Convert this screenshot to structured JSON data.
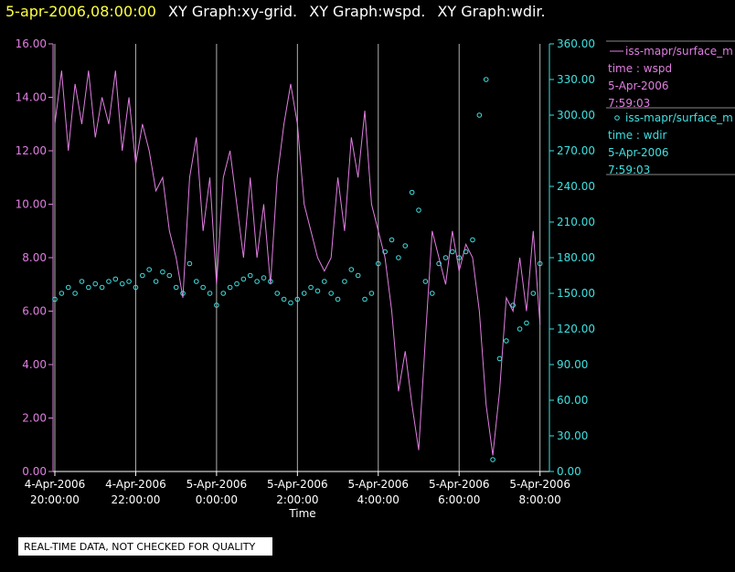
{
  "chart_data": {
    "type": "xy",
    "title": [
      "5-apr-2006,08:00:00",
      "XY Graph:xy-grid.",
      "XY Graph:wspd.",
      "XY Graph:wdir."
    ],
    "x_label": "Time",
    "note": "REAL-TIME DATA, NOT CHECKED FOR QUALITY",
    "xlim": [
      "2006-04-04T20:00:00",
      "2006-04-05T08:14:00"
    ],
    "xticks": [
      {
        "value": "2006-04-04T20:00:00",
        "label": [
          "4-Apr-2006",
          "20:00:00"
        ]
      },
      {
        "value": "2006-04-04T22:00:00",
        "label": [
          "4-Apr-2006",
          "22:00:00"
        ]
      },
      {
        "value": "2006-04-05T00:00:00",
        "label": [
          "5-Apr-2006",
          "0:00:00"
        ]
      },
      {
        "value": "2006-04-05T02:00:00",
        "label": [
          "5-Apr-2006",
          "2:00:00"
        ]
      },
      {
        "value": "2006-04-05T04:00:00",
        "label": [
          "5-Apr-2006",
          "4:00:00"
        ]
      },
      {
        "value": "2006-04-05T06:00:00",
        "label": [
          "5-Apr-2006",
          "6:00:00"
        ]
      },
      {
        "value": "2006-04-05T08:00:00",
        "label": [
          "5-Apr-2006",
          "8:00:00"
        ]
      }
    ],
    "grid": "vertical",
    "ylim": [
      0,
      16
    ],
    "yticks": [
      {
        "value": 0,
        "label": "0.00"
      },
      {
        "value": 2,
        "label": "2.00"
      },
      {
        "value": 4,
        "label": "4.00"
      },
      {
        "value": 6,
        "label": "6.00"
      },
      {
        "value": 8,
        "label": "8.00"
      },
      {
        "value": 10,
        "label": "10.00"
      },
      {
        "value": 12,
        "label": "12.00"
      },
      {
        "value": 14,
        "label": "14.00"
      },
      {
        "value": 16,
        "label": "16.00"
      }
    ],
    "y2lim": [
      0,
      360
    ],
    "y2ticks": [
      {
        "value": 0,
        "label": "0.00"
      },
      {
        "value": 30,
        "label": "30.00"
      },
      {
        "value": 60,
        "label": "60.00"
      },
      {
        "value": 90,
        "label": "90.00"
      },
      {
        "value": 120,
        "label": "120.00"
      },
      {
        "value": 150,
        "label": "150.00"
      },
      {
        "value": 180,
        "label": "180.00"
      },
      {
        "value": 210,
        "label": "210.00"
      },
      {
        "value": 240,
        "label": "240.00"
      },
      {
        "value": 270,
        "label": "270.00"
      },
      {
        "value": 300,
        "label": "300.00"
      },
      {
        "value": 330,
        "label": "330.00"
      },
      {
        "value": 360,
        "label": "360.00"
      }
    ],
    "x": [
      "2006-04-04T20:00",
      "2006-04-04T20:10",
      "2006-04-04T20:20",
      "2006-04-04T20:30",
      "2006-04-04T20:40",
      "2006-04-04T20:50",
      "2006-04-04T21:00",
      "2006-04-04T21:10",
      "2006-04-04T21:20",
      "2006-04-04T21:30",
      "2006-04-04T21:40",
      "2006-04-04T21:50",
      "2006-04-04T22:00",
      "2006-04-04T22:10",
      "2006-04-04T22:20",
      "2006-04-04T22:30",
      "2006-04-04T22:40",
      "2006-04-04T22:50",
      "2006-04-04T23:00",
      "2006-04-04T23:10",
      "2006-04-04T23:20",
      "2006-04-04T23:30",
      "2006-04-04T23:40",
      "2006-04-04T23:50",
      "2006-04-05T00:00",
      "2006-04-05T00:10",
      "2006-04-05T00:20",
      "2006-04-05T00:30",
      "2006-04-05T00:40",
      "2006-04-05T00:50",
      "2006-04-05T01:00",
      "2006-04-05T01:10",
      "2006-04-05T01:20",
      "2006-04-05T01:30",
      "2006-04-05T01:40",
      "2006-04-05T01:50",
      "2006-04-05T02:00",
      "2006-04-05T02:10",
      "2006-04-05T02:20",
      "2006-04-05T02:30",
      "2006-04-05T02:40",
      "2006-04-05T02:50",
      "2006-04-05T03:00",
      "2006-04-05T03:10",
      "2006-04-05T03:20",
      "2006-04-05T03:30",
      "2006-04-05T03:40",
      "2006-04-05T03:50",
      "2006-04-05T04:00",
      "2006-04-05T04:10",
      "2006-04-05T04:20",
      "2006-04-05T04:30",
      "2006-04-05T04:40",
      "2006-04-05T04:50",
      "2006-04-05T05:00",
      "2006-04-05T05:10",
      "2006-04-05T05:20",
      "2006-04-05T05:30",
      "2006-04-05T05:40",
      "2006-04-05T05:50",
      "2006-04-05T06:00",
      "2006-04-05T06:10",
      "2006-04-05T06:20",
      "2006-04-05T06:30",
      "2006-04-05T06:40",
      "2006-04-05T06:50",
      "2006-04-05T07:00",
      "2006-04-05T07:10",
      "2006-04-05T07:20",
      "2006-04-05T07:30",
      "2006-04-05T07:40",
      "2006-04-05T07:50",
      "2006-04-05T08:00"
    ],
    "series": [
      {
        "name": "iss-mapr/surface_m",
        "label": "time : wspd",
        "date": "5-Apr-2006",
        "time": "7:59:03",
        "color": "#e07ee0",
        "style": "line",
        "values": [
          13,
          15,
          12,
          14.5,
          13,
          15,
          12.5,
          14,
          13,
          15,
          12,
          14,
          11.5,
          13,
          12,
          10.5,
          11,
          9,
          8,
          6.5,
          11,
          12.5,
          9,
          11,
          7,
          11,
          12,
          10,
          8,
          11,
          8,
          10,
          7,
          11,
          13,
          14.5,
          13,
          10,
          9,
          8,
          7.5,
          8,
          11,
          9,
          12.5,
          11,
          13.5,
          10,
          9,
          8,
          6,
          3,
          4.5,
          2.5,
          0.8,
          5,
          9,
          8,
          7,
          9,
          7.5,
          8.5,
          8,
          6,
          2.5,
          0.6,
          3,
          6.5,
          6,
          8,
          6,
          9,
          5.5
        ]
      },
      {
        "name": "iss-mapr/surface_m",
        "label": "time : wdir",
        "date": "5-Apr-2006",
        "time": "7:59:03",
        "color": "#40e0e0",
        "style": "points",
        "axis": "y2",
        "values": [
          145,
          150,
          155,
          150,
          160,
          155,
          158,
          155,
          160,
          162,
          158,
          160,
          155,
          165,
          170,
          160,
          168,
          165,
          155,
          150,
          175,
          160,
          155,
          150,
          140,
          150,
          155,
          158,
          162,
          165,
          160,
          163,
          160,
          150,
          145,
          142,
          145,
          150,
          155,
          152,
          160,
          150,
          145,
          160,
          170,
          165,
          145,
          150,
          175,
          185,
          195,
          180,
          190,
          235,
          220,
          160,
          150,
          175,
          180,
          185,
          180,
          185,
          195,
          300,
          330,
          10,
          95,
          110,
          140,
          120,
          125,
          150,
          175
        ]
      }
    ]
  }
}
